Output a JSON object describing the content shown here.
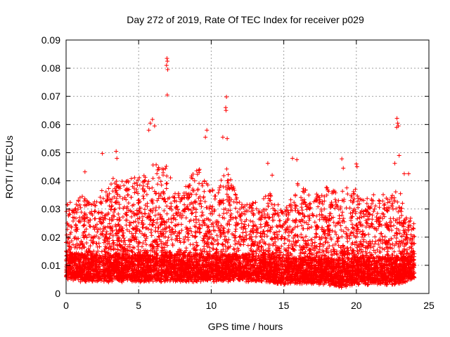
{
  "chart_data": {
    "type": "scatter",
    "title": "Day 272 of 2019, Rate Of TEC Index for receiver p029",
    "xlabel": "GPS time / hours",
    "ylabel": "ROTI / TECUs",
    "xlim": [
      0,
      25
    ],
    "ylim": [
      0,
      0.09
    ],
    "xticks": [
      0,
      5,
      10,
      15,
      20,
      25
    ],
    "yticks": [
      0,
      0.01,
      0.02,
      0.03,
      0.04,
      0.05,
      0.06,
      0.07,
      0.08,
      0.09
    ],
    "xtick_labels": [
      "0",
      "5",
      "10",
      "15",
      "20",
      "25"
    ],
    "ytick_labels": [
      "0",
      "0.01",
      "0.02",
      "0.03",
      "0.04",
      "0.05",
      "0.06",
      "0.07",
      "0.08",
      "0.09"
    ],
    "grid": true,
    "marker": "+",
    "color": "#ff0000",
    "data_range_hours": [
      0,
      24
    ],
    "outliers": [
      {
        "x": 6.95,
        "y": 0.0835
      },
      {
        "x": 6.98,
        "y": 0.0825
      },
      {
        "x": 6.92,
        "y": 0.081
      },
      {
        "x": 7.0,
        "y": 0.0795
      },
      {
        "x": 6.97,
        "y": 0.0705
      },
      {
        "x": 11.05,
        "y": 0.0698
      },
      {
        "x": 11.0,
        "y": 0.066
      },
      {
        "x": 11.02,
        "y": 0.065
      },
      {
        "x": 22.8,
        "y": 0.0622
      },
      {
        "x": 22.85,
        "y": 0.0605
      },
      {
        "x": 22.9,
        "y": 0.0595
      },
      {
        "x": 22.78,
        "y": 0.059
      },
      {
        "x": 5.95,
        "y": 0.0618
      },
      {
        "x": 5.8,
        "y": 0.0605
      },
      {
        "x": 6.1,
        "y": 0.0595
      },
      {
        "x": 5.7,
        "y": 0.058
      },
      {
        "x": 9.7,
        "y": 0.058
      },
      {
        "x": 9.6,
        "y": 0.0555
      },
      {
        "x": 10.8,
        "y": 0.0555
      },
      {
        "x": 11.1,
        "y": 0.055
      },
      {
        "x": 22.95,
        "y": 0.049
      },
      {
        "x": 2.5,
        "y": 0.0497
      },
      {
        "x": 3.45,
        "y": 0.0505
      },
      {
        "x": 3.5,
        "y": 0.048
      },
      {
        "x": 15.6,
        "y": 0.048
      },
      {
        "x": 15.9,
        "y": 0.0475
      },
      {
        "x": 19.0,
        "y": 0.0478
      },
      {
        "x": 19.1,
        "y": 0.0445
      },
      {
        "x": 20.0,
        "y": 0.046
      },
      {
        "x": 20.05,
        "y": 0.045
      },
      {
        "x": 22.65,
        "y": 0.0462
      },
      {
        "x": 23.3,
        "y": 0.0425
      },
      {
        "x": 23.6,
        "y": 0.0425
      },
      {
        "x": 13.9,
        "y": 0.0462
      },
      {
        "x": 14.2,
        "y": 0.042
      },
      {
        "x": 1.3,
        "y": 0.0432
      }
    ],
    "envelope_description_hours": [
      {
        "x": 0,
        "y_low": 0.006,
        "y_high": 0.032
      },
      {
        "x": 1,
        "y_low": 0.005,
        "y_high": 0.034
      },
      {
        "x": 2,
        "y_low": 0.005,
        "y_high": 0.033
      },
      {
        "x": 3,
        "y_low": 0.005,
        "y_high": 0.04
      },
      {
        "x": 4,
        "y_low": 0.005,
        "y_high": 0.04
      },
      {
        "x": 5,
        "y_low": 0.005,
        "y_high": 0.042
      },
      {
        "x": 6,
        "y_low": 0.005,
        "y_high": 0.045
      },
      {
        "x": 7,
        "y_low": 0.005,
        "y_high": 0.045
      },
      {
        "x": 8,
        "y_low": 0.005,
        "y_high": 0.035
      },
      {
        "x": 9,
        "y_low": 0.005,
        "y_high": 0.045
      },
      {
        "x": 10,
        "y_low": 0.005,
        "y_high": 0.038
      },
      {
        "x": 11,
        "y_low": 0.005,
        "y_high": 0.045
      },
      {
        "x": 12,
        "y_low": 0.005,
        "y_high": 0.032
      },
      {
        "x": 13,
        "y_low": 0.005,
        "y_high": 0.033
      },
      {
        "x": 14,
        "y_low": 0.005,
        "y_high": 0.036
      },
      {
        "x": 15,
        "y_low": 0.004,
        "y_high": 0.03
      },
      {
        "x": 16,
        "y_low": 0.004,
        "y_high": 0.04
      },
      {
        "x": 17,
        "y_low": 0.004,
        "y_high": 0.034
      },
      {
        "x": 18,
        "y_low": 0.004,
        "y_high": 0.038
      },
      {
        "x": 19,
        "y_low": 0.003,
        "y_high": 0.037
      },
      {
        "x": 20,
        "y_low": 0.004,
        "y_high": 0.036
      },
      {
        "x": 21,
        "y_low": 0.004,
        "y_high": 0.034
      },
      {
        "x": 22,
        "y_low": 0.004,
        "y_high": 0.035
      },
      {
        "x": 23,
        "y_low": 0.004,
        "y_high": 0.036
      },
      {
        "x": 24,
        "y_low": 0.006,
        "y_high": 0.024
      }
    ]
  }
}
